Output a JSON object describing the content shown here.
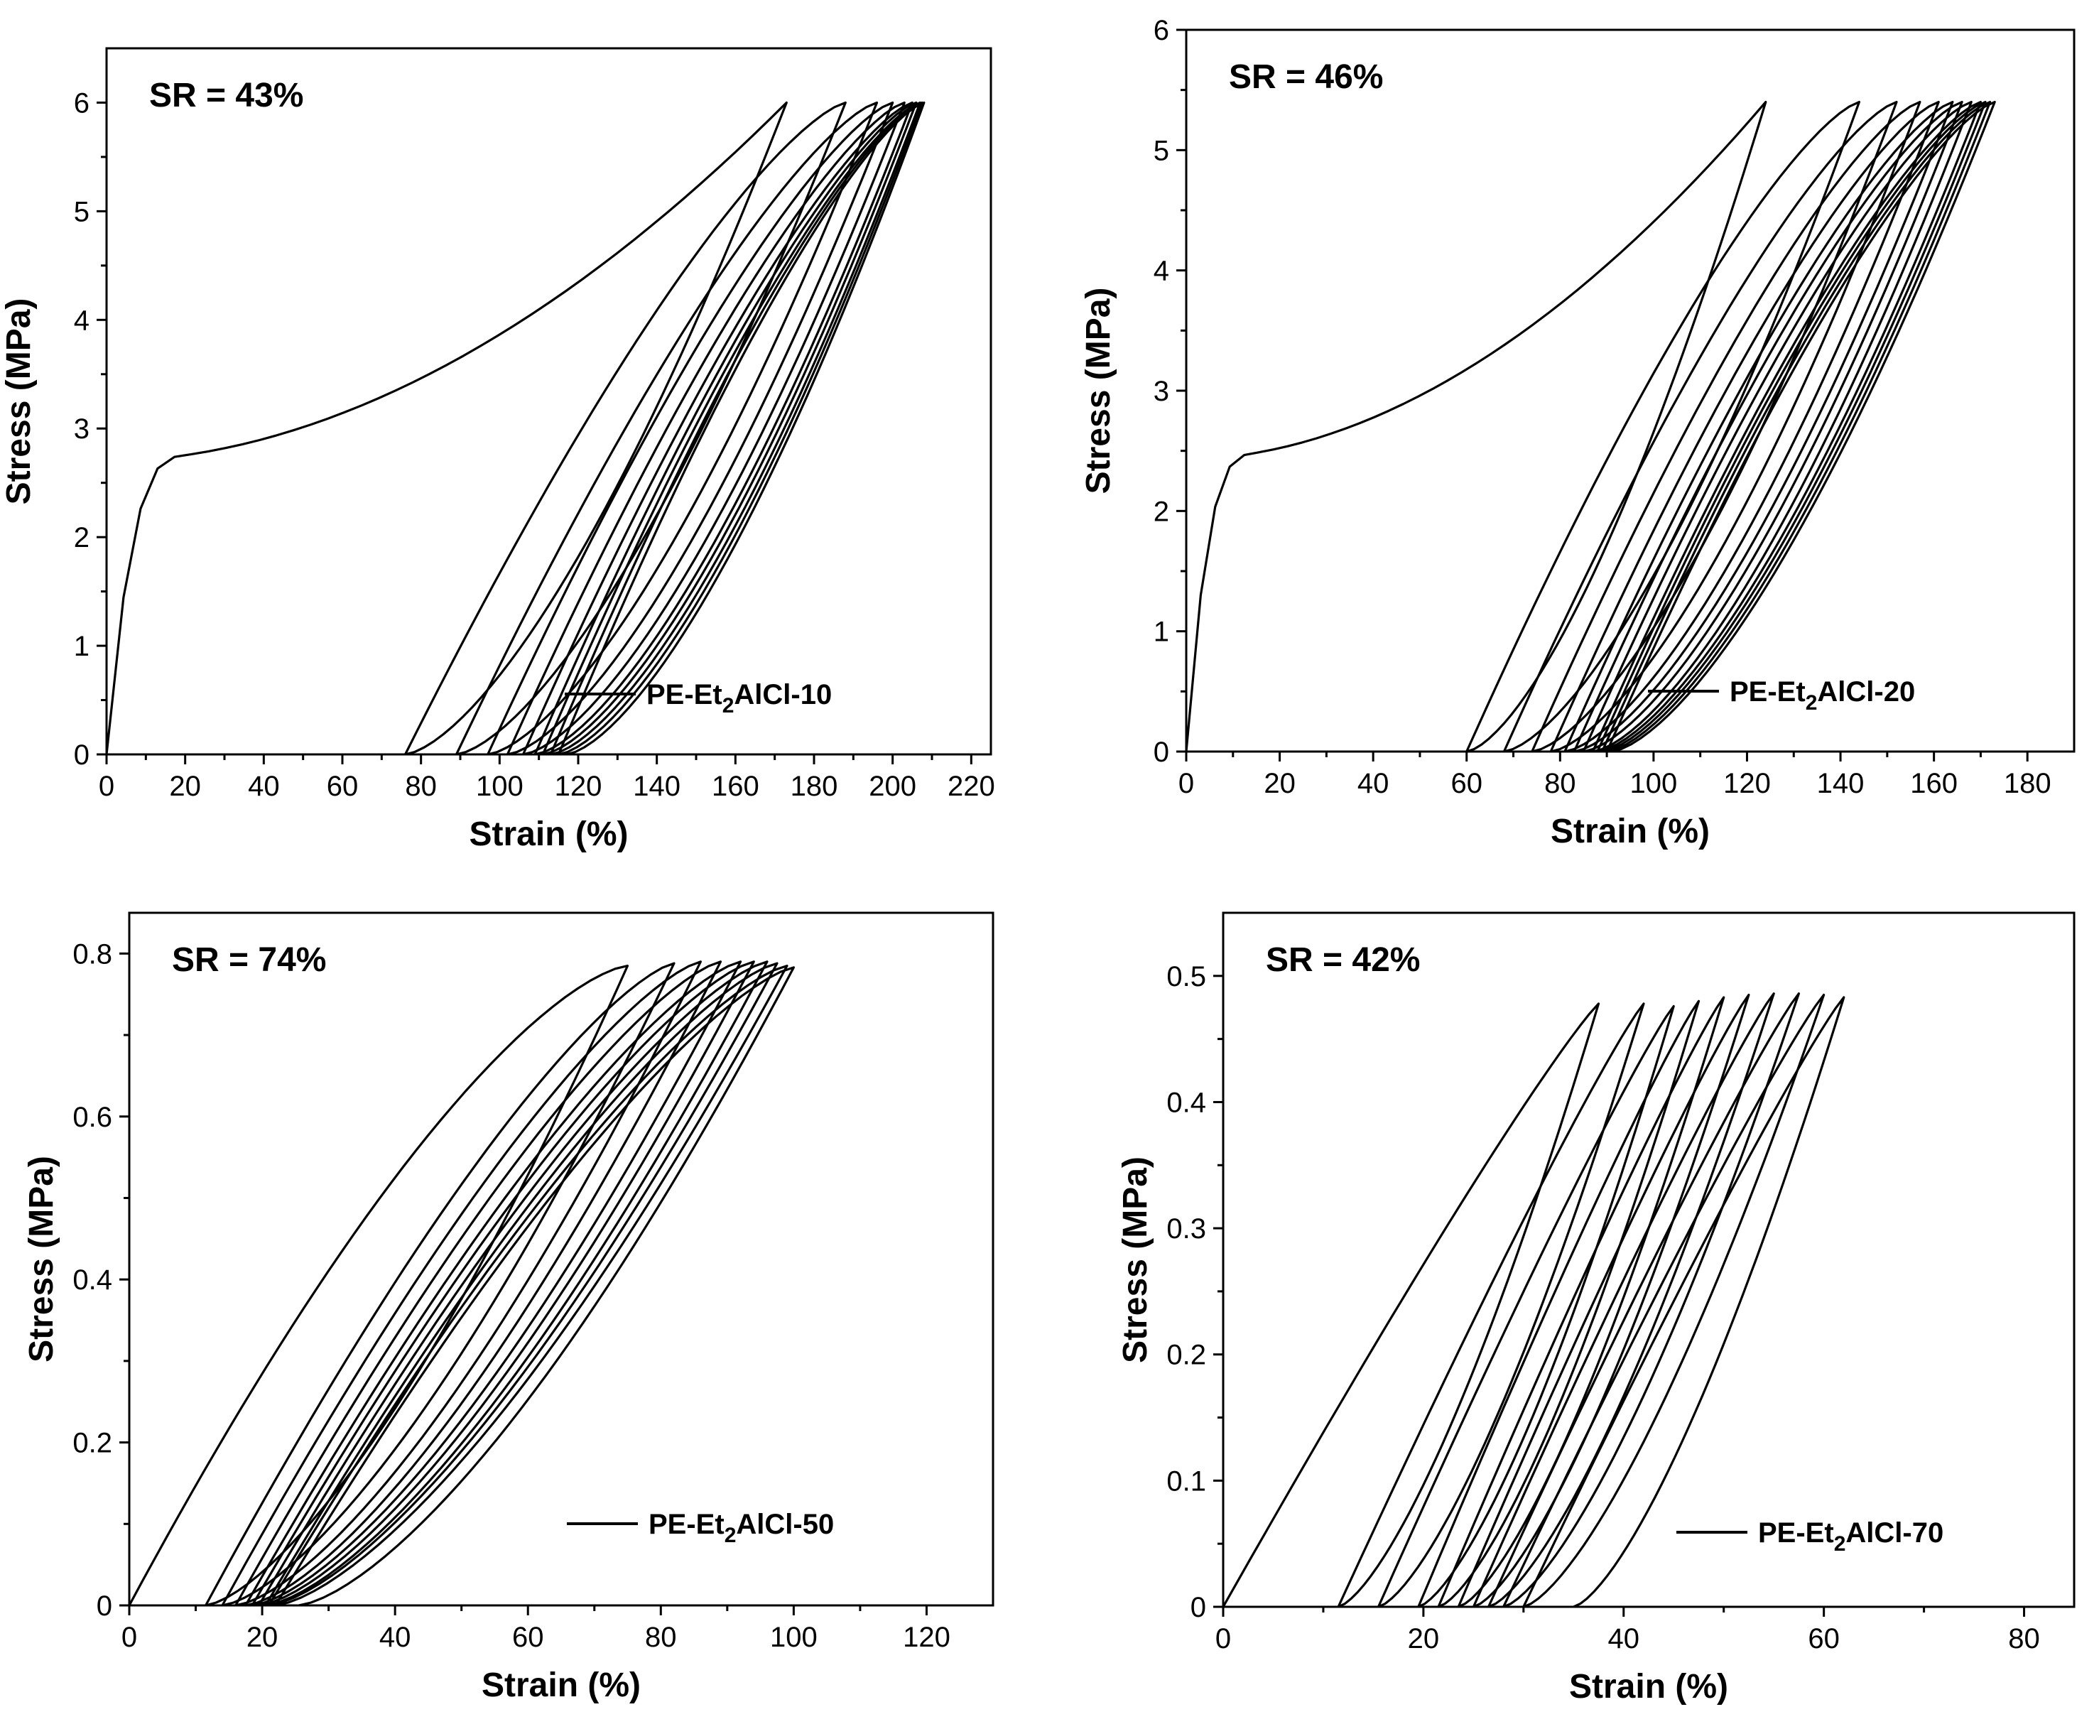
{
  "chart_data": [
    {
      "type": "line",
      "annotation": "SR = 43%",
      "xlabel": "Strain (%)",
      "ylabel": "Stress (MPa)",
      "xlim": [
        0,
        225
      ],
      "ylim": [
        0,
        6.5
      ],
      "x_ticks": [
        "0",
        "20",
        "40",
        "60",
        "80",
        "100",
        "120",
        "140",
        "160",
        "180",
        "200",
        "220"
      ],
      "y_ticks": [
        "0",
        "1",
        "2",
        "3",
        "4",
        "5",
        "6"
      ],
      "legend": {
        "base": "PE-Et",
        "sub": "2",
        "suffix": "AlCl-10",
        "position": "bottom-right"
      },
      "line_color": "#000000",
      "series": [
        {
          "cycles": [
            {
              "start": 0,
              "peak": [
                173,
                6.0
              ],
              "end": 76
            },
            {
              "start": 76,
              "peak": [
                188,
                6.0
              ],
              "end": 89
            },
            {
              "start": 89,
              "peak": [
                196,
                6.0
              ],
              "end": 97
            },
            {
              "start": 97,
              "peak": [
                200,
                6.0
              ],
              "end": 102
            },
            {
              "start": 102,
              "peak": [
                203,
                6.0
              ],
              "end": 106
            },
            {
              "start": 106,
              "peak": [
                205,
                6.0
              ],
              "end": 109
            },
            {
              "start": 109,
              "peak": [
                206,
                6.0
              ],
              "end": 111
            },
            {
              "start": 111,
              "peak": [
                207,
                6.0
              ],
              "end": 113
            },
            {
              "start": 113,
              "peak": [
                207.5,
                6.0
              ],
              "end": 115
            },
            {
              "start": 115,
              "peak": [
                208,
                6.0
              ],
              "end": 117
            }
          ]
        }
      ]
    },
    {
      "type": "line",
      "annotation": "SR = 46%",
      "xlabel": "Strain (%)",
      "ylabel": "Stress (MPa)",
      "xlim": [
        0,
        190
      ],
      "ylim": [
        0,
        6
      ],
      "x_ticks": [
        "0",
        "20",
        "40",
        "60",
        "80",
        "100",
        "120",
        "140",
        "160",
        "180"
      ],
      "y_ticks": [
        "0",
        "1",
        "2",
        "3",
        "4",
        "5",
        "6"
      ],
      "legend": {
        "base": "PE-Et",
        "sub": "2",
        "suffix": "AlCl-20",
        "position": "bottom-right"
      },
      "line_color": "#000000",
      "series": [
        {
          "cycles": [
            {
              "start": 0,
              "peak": [
                124,
                5.4
              ],
              "end": 60
            },
            {
              "start": 60,
              "peak": [
                144,
                5.4
              ],
              "end": 68
            },
            {
              "start": 68,
              "peak": [
                152,
                5.4
              ],
              "end": 74
            },
            {
              "start": 74,
              "peak": [
                157,
                5.4
              ],
              "end": 78
            },
            {
              "start": 78,
              "peak": [
                161,
                5.4
              ],
              "end": 81
            },
            {
              "start": 81,
              "peak": [
                164,
                5.4
              ],
              "end": 83
            },
            {
              "start": 83,
              "peak": [
                166,
                5.4
              ],
              "end": 85
            },
            {
              "start": 85,
              "peak": [
                168,
                5.4
              ],
              "end": 87
            },
            {
              "start": 87,
              "peak": [
                170,
                5.4
              ],
              "end": 88
            },
            {
              "start": 88,
              "peak": [
                171,
                5.4
              ],
              "end": 89
            },
            {
              "start": 89,
              "peak": [
                172,
                5.4
              ],
              "end": 90
            },
            {
              "start": 90,
              "peak": [
                173,
                5.4
              ],
              "end": 91
            }
          ]
        }
      ]
    },
    {
      "type": "line",
      "annotation": "SR = 74%",
      "xlabel": "Strain (%)",
      "ylabel": "Stress (MPa)",
      "xlim": [
        0,
        130
      ],
      "ylim": [
        0,
        0.85
      ],
      "x_ticks": [
        "0",
        "20",
        "40",
        "60",
        "80",
        "100",
        "120"
      ],
      "y_ticks": [
        "0",
        "0.2",
        "0.4",
        "0.6",
        "0.8"
      ],
      "legend": {
        "base": "PE-Et",
        "sub": "2",
        "suffix": "AlCl-50",
        "position": "bottom-right"
      },
      "line_color": "#000000",
      "series": [
        {
          "cycles": [
            {
              "start": 0,
              "peak": [
                75,
                0.785
              ],
              "end": 11.5
            },
            {
              "start": 11.5,
              "peak": [
                82,
                0.788
              ],
              "end": 14
            },
            {
              "start": 14,
              "peak": [
                86,
                0.79
              ],
              "end": 16
            },
            {
              "start": 16,
              "peak": [
                89,
                0.79
              ],
              "end": 17.5
            },
            {
              "start": 17.5,
              "peak": [
                92,
                0.79
              ],
              "end": 18.5
            },
            {
              "start": 18.5,
              "peak": [
                94,
                0.79
              ],
              "end": 19.5
            },
            {
              "start": 19.5,
              "peak": [
                96,
                0.79
              ],
              "end": 20.5
            },
            {
              "start": 20.5,
              "peak": [
                97.5,
                0.788
              ],
              "end": 21
            },
            {
              "start": 21,
              "peak": [
                99,
                0.785
              ],
              "end": 22
            },
            {
              "start": 22,
              "peak": [
                100,
                0.783
              ],
              "end": 25.5
            }
          ]
        }
      ]
    },
    {
      "type": "line",
      "annotation": "SR = 42%",
      "xlabel": "Strain (%)",
      "ylabel": "Stress (MPa)",
      "xlim": [
        0,
        85
      ],
      "ylim": [
        0,
        0.55
      ],
      "x_ticks": [
        "0",
        "20",
        "40",
        "60",
        "80"
      ],
      "y_ticks": [
        "0",
        "0.1",
        "0.2",
        "0.3",
        "0.4",
        "0.5"
      ],
      "legend": {
        "base": "PE-Et",
        "sub": "2",
        "suffix": "AlCl-70",
        "position": "bottom-right"
      },
      "line_color": "#000000",
      "series": [
        {
          "cycles": [
            {
              "start": 0,
              "peak": [
                37.5,
                0.478
              ],
              "end": 11.5
            },
            {
              "start": 11.5,
              "peak": [
                42,
                0.478
              ],
              "end": 15.5
            },
            {
              "start": 15.5,
              "peak": [
                45,
                0.476
              ],
              "end": 19.5
            },
            {
              "start": 19.5,
              "peak": [
                47.5,
                0.48
              ],
              "end": 21.5
            },
            {
              "start": 21.5,
              "peak": [
                50,
                0.483
              ],
              "end": 23.5
            },
            {
              "start": 23.5,
              "peak": [
                52.5,
                0.485
              ],
              "end": 25
            },
            {
              "start": 25,
              "peak": [
                55,
                0.486
              ],
              "end": 26.5
            },
            {
              "start": 26.5,
              "peak": [
                57.5,
                0.486
              ],
              "end": 28
            },
            {
              "start": 28,
              "peak": [
                60,
                0.485
              ],
              "end": 30
            },
            {
              "start": 30,
              "peak": [
                62,
                0.483
              ],
              "end": 35
            }
          ]
        }
      ]
    }
  ]
}
